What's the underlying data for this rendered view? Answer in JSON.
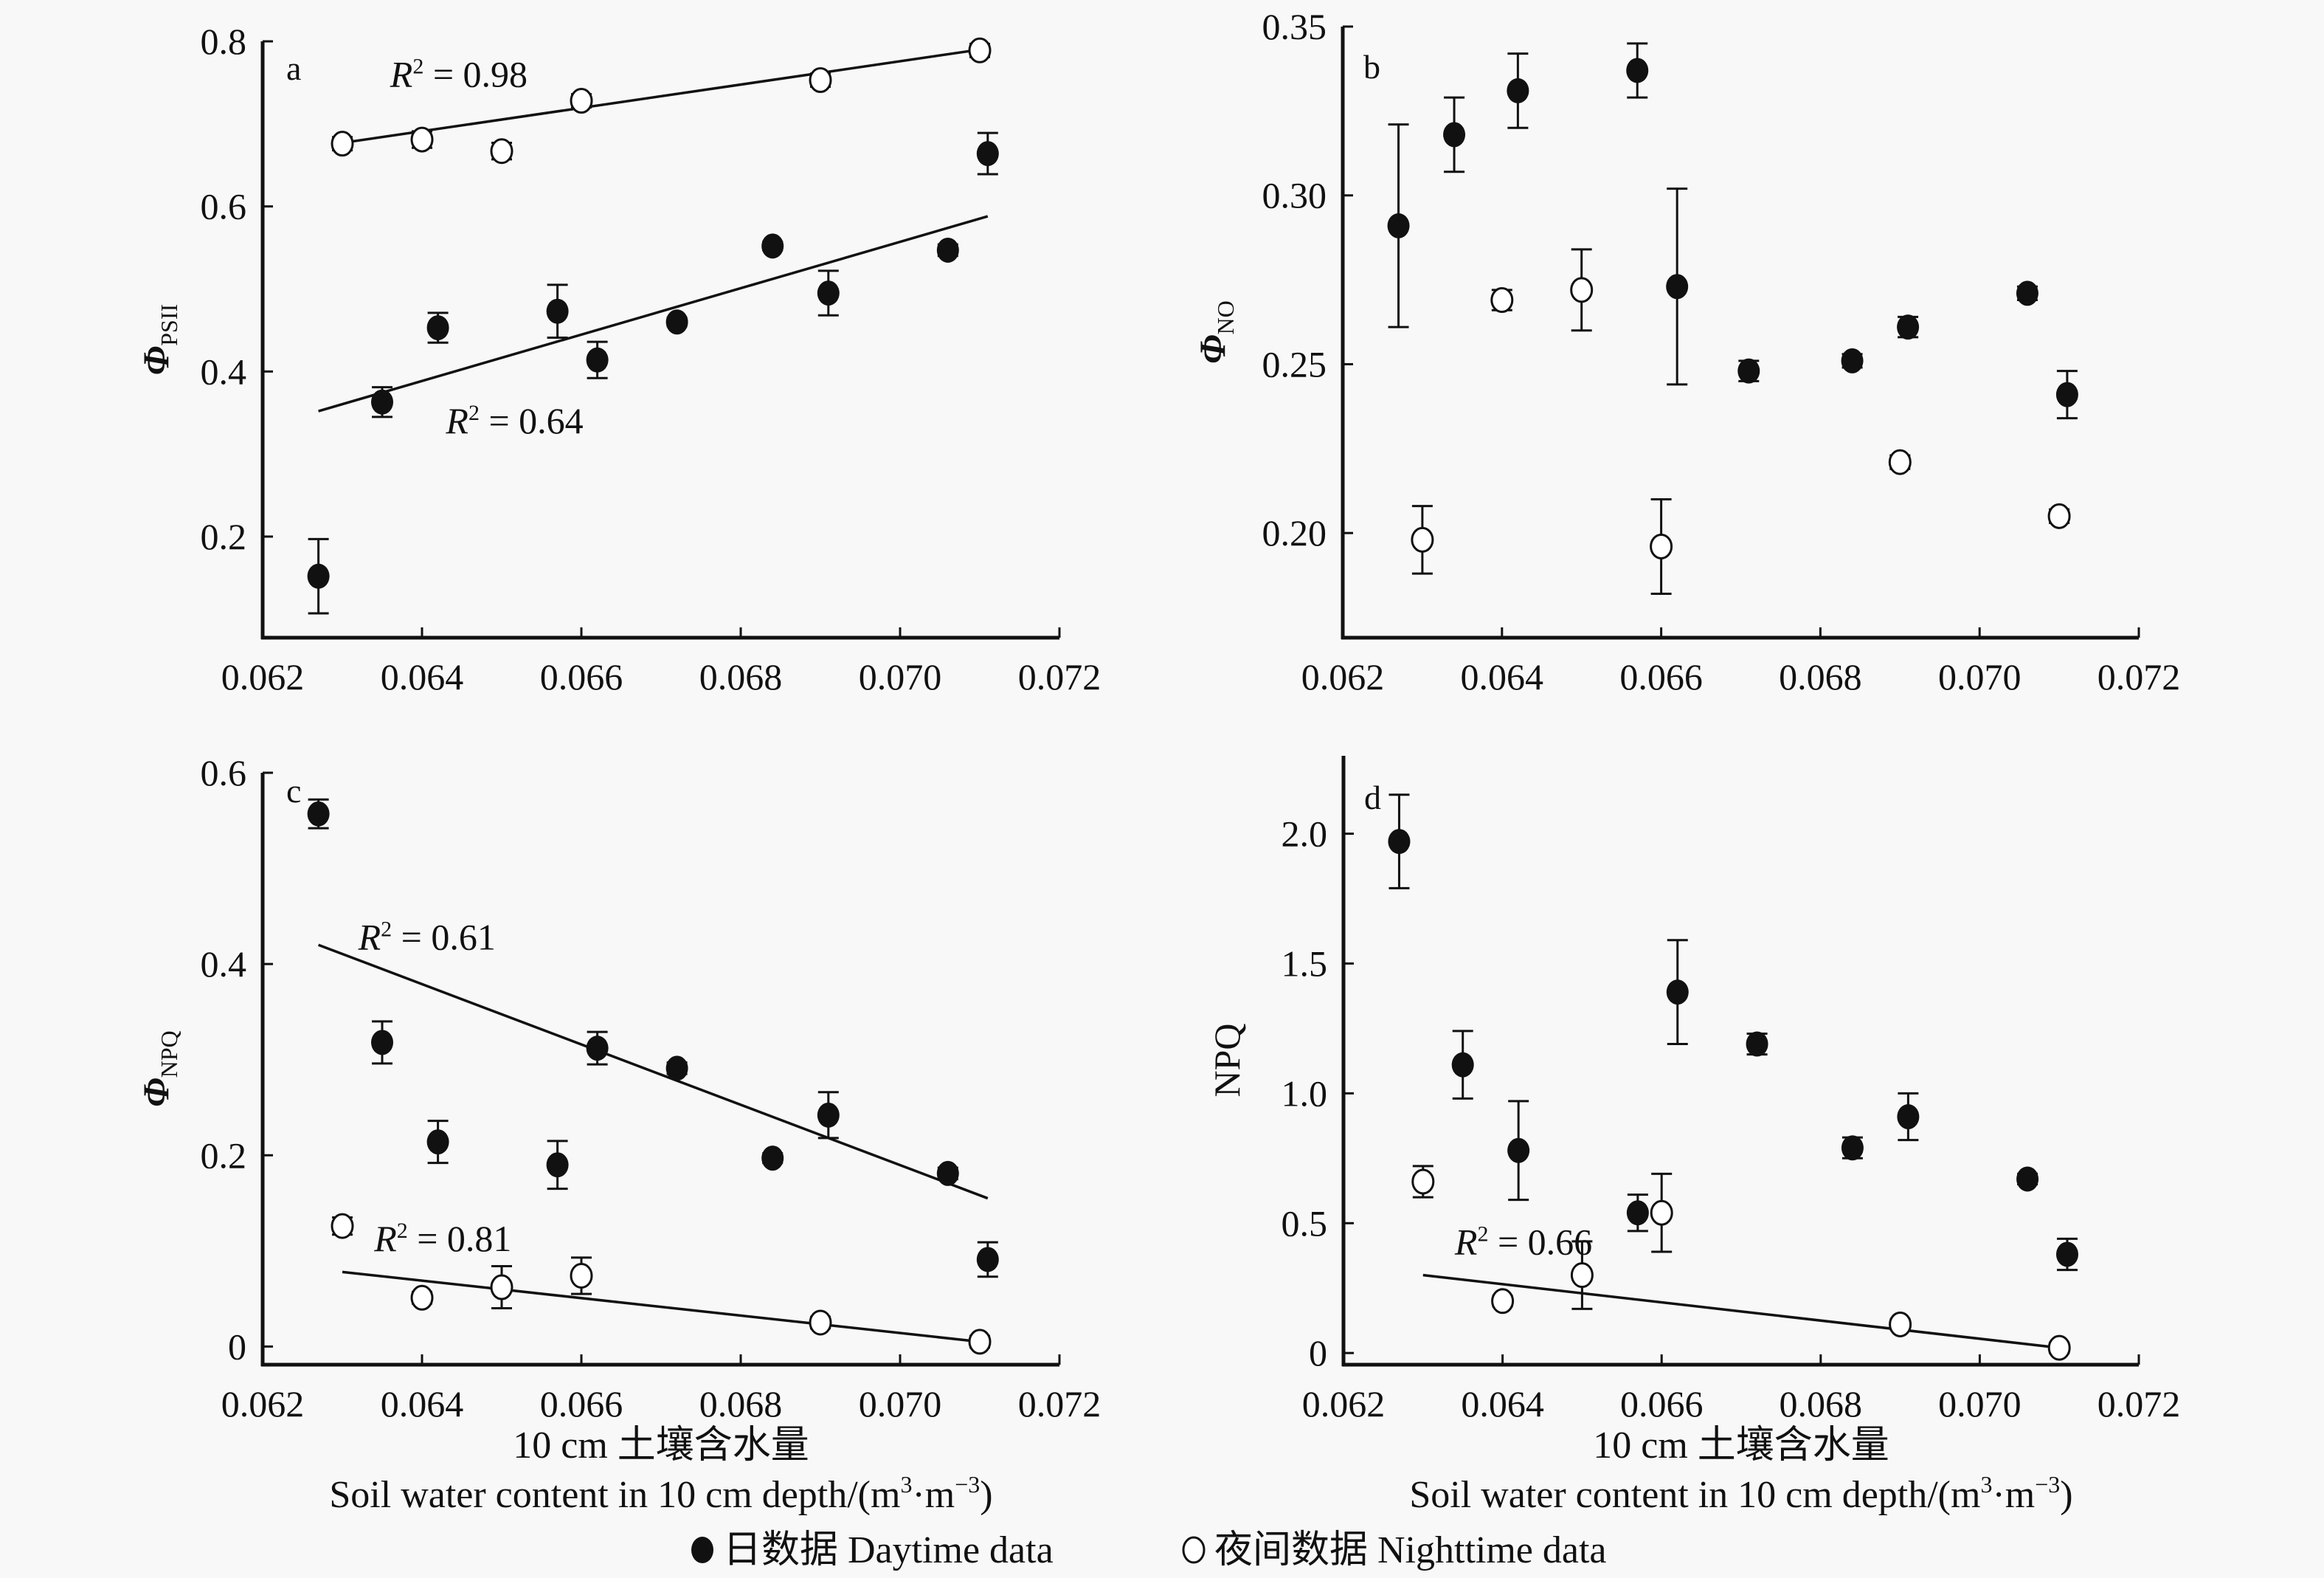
{
  "chart_data": [
    {
      "panel": "a",
      "type": "scatter",
      "ylabel": "Φ",
      "ylabel_sub": "PSII",
      "xlim": [
        0.062,
        0.072
      ],
      "ylim": [
        0.0775,
        0.8
      ],
      "xticks": [
        "0.062",
        "0.064",
        "0.066",
        "0.068",
        "0.070",
        "0.072"
      ],
      "yticks": [
        {
          "v": 0.2,
          "label": "0.2"
        },
        {
          "v": 0.4,
          "label": "0.4"
        },
        {
          "v": 0.6,
          "label": "0.6"
        },
        {
          "v": 0.8,
          "label": "0.8"
        }
      ],
      "series": [
        {
          "name": "Daytime data",
          "marker": "filled",
          "x": [
            0.0627,
            0.0635,
            0.0642,
            0.0657,
            0.0662,
            0.0672,
            0.0684,
            0.0691,
            0.0706,
            0.0711
          ],
          "y": [
            0.152,
            0.363,
            0.453,
            0.473,
            0.414,
            0.46,
            0.552,
            0.495,
            0.547,
            0.664
          ],
          "err": [
            0.045,
            0.018,
            0.018,
            0.032,
            0.022,
            0.005,
            0.005,
            0.027,
            0.007,
            0.025
          ]
        },
        {
          "name": "Nighttime data",
          "marker": "open",
          "x": [
            0.063,
            0.064,
            0.065,
            0.066,
            0.069,
            0.071
          ],
          "y": [
            0.676,
            0.681,
            0.667,
            0.728,
            0.753,
            0.789
          ],
          "err": [
            0.008,
            0.01,
            0.01,
            0.008,
            0.008,
            0.008
          ]
        }
      ],
      "fits": [
        {
          "series": "Nighttime data",
          "x": [
            0.063,
            0.071
          ],
          "y": [
            0.677,
            0.79
          ],
          "label": "R² = 0.98",
          "r2": "0.98",
          "label_at": [
            0.0636,
            0.745
          ]
        },
        {
          "series": "Daytime data",
          "x": [
            0.0627,
            0.0711
          ],
          "y": [
            0.352,
            0.588
          ],
          "label": "R² = 0.64",
          "r2": "0.64",
          "label_at": [
            0.0643,
            0.325
          ]
        }
      ]
    },
    {
      "panel": "b",
      "type": "scatter",
      "ylabel": "Φ",
      "ylabel_sub": "NO",
      "xlim": [
        0.062,
        0.072
      ],
      "ylim": [
        0.169,
        0.35
      ],
      "xticks": [
        "0.062",
        "0.064",
        "0.066",
        "0.068",
        "0.070",
        "0.072"
      ],
      "yticks": [
        {
          "v": 0.2,
          "label": "0.20"
        },
        {
          "v": 0.25,
          "label": "0.25"
        },
        {
          "v": 0.3,
          "label": "0.30"
        },
        {
          "v": 0.35,
          "label": "0.35"
        }
      ],
      "series": [
        {
          "name": "Daytime data",
          "marker": "filled",
          "x": [
            0.0627,
            0.0634,
            0.0642,
            0.0657,
            0.0662,
            0.0671,
            0.0684,
            0.0691,
            0.0706,
            0.0711
          ],
          "y": [
            0.291,
            0.318,
            0.331,
            0.337,
            0.273,
            0.248,
            0.251,
            0.261,
            0.271,
            0.241
          ],
          "err": [
            0.03,
            0.011,
            0.011,
            0.008,
            0.029,
            0.003,
            0.002,
            0.003,
            0.002,
            0.007
          ]
        },
        {
          "name": "Nighttime data",
          "marker": "open",
          "x": [
            0.063,
            0.064,
            0.065,
            0.066,
            0.069,
            0.071
          ],
          "y": [
            0.198,
            0.269,
            0.272,
            0.196,
            0.221,
            0.205
          ],
          "err": [
            0.01,
            0.003,
            0.012,
            0.014,
            0.002,
            0.002
          ]
        }
      ],
      "fits": []
    },
    {
      "panel": "c",
      "type": "scatter",
      "ylabel": "Φ",
      "ylabel_sub": "NPQ",
      "xlim": [
        0.062,
        0.072
      ],
      "ylim": [
        -0.019,
        0.6
      ],
      "xticks": [
        "0.062",
        "0.064",
        "0.066",
        "0.068",
        "0.070",
        "0.072"
      ],
      "yticks": [
        {
          "v": 0,
          "label": "0"
        },
        {
          "v": 0.2,
          "label": "0.2"
        },
        {
          "v": 0.4,
          "label": "0.4"
        },
        {
          "v": 0.6,
          "label": "0.6"
        }
      ],
      "series": [
        {
          "name": "Daytime data",
          "marker": "filled",
          "x": [
            0.0627,
            0.0635,
            0.0642,
            0.0657,
            0.0662,
            0.0672,
            0.0684,
            0.0691,
            0.0706,
            0.0711
          ],
          "y": [
            0.557,
            0.318,
            0.214,
            0.19,
            0.312,
            0.291,
            0.197,
            0.242,
            0.181,
            0.091
          ],
          "err": [
            0.015,
            0.022,
            0.022,
            0.025,
            0.017,
            0.006,
            0.005,
            0.024,
            0.006,
            0.018
          ]
        },
        {
          "name": "Nighttime data",
          "marker": "open",
          "x": [
            0.063,
            0.064,
            0.065,
            0.066,
            0.069,
            0.071
          ],
          "y": [
            0.126,
            0.051,
            0.062,
            0.074,
            0.025,
            0.005
          ],
          "err": [
            0.009,
            0.006,
            0.022,
            0.019,
            0.006,
            0.006
          ]
        }
      ],
      "fits": [
        {
          "series": "Daytime data",
          "x": [
            0.0627,
            0.0711
          ],
          "y": [
            0.42,
            0.155
          ],
          "label": "R² = 0.61",
          "r2": "0.61",
          "label_at": [
            0.0632,
            0.415
          ]
        },
        {
          "series": "Nighttime data",
          "x": [
            0.063,
            0.071
          ],
          "y": [
            0.078,
            0.005
          ],
          "label": "R² = 0.81",
          "r2": "0.81",
          "label_at": [
            0.0634,
            0.1
          ]
        }
      ]
    },
    {
      "panel": "d",
      "type": "scatter",
      "ylabel": "NPQ",
      "ylabel_sub": "",
      "xlim": [
        0.062,
        0.072
      ],
      "ylim": [
        -0.045,
        2.3
      ],
      "xticks": [
        "0.062",
        "0.064",
        "0.066",
        "0.068",
        "0.070",
        "0.072"
      ],
      "yticks": [
        {
          "v": 0,
          "label": "0"
        },
        {
          "v": 0.5,
          "label": "0.5"
        },
        {
          "v": 1.0,
          "label": "1.0"
        },
        {
          "v": 1.5,
          "label": "1.5"
        },
        {
          "v": 2.0,
          "label": "2.0"
        }
      ],
      "series": [
        {
          "name": "Daytime data",
          "marker": "filled",
          "x": [
            0.0627,
            0.0635,
            0.0642,
            0.0657,
            0.0662,
            0.0672,
            0.0684,
            0.0691,
            0.0706,
            0.0711
          ],
          "y": [
            1.97,
            1.11,
            0.78,
            0.54,
            1.39,
            1.19,
            0.79,
            0.91,
            0.67,
            0.38
          ],
          "err": [
            0.18,
            0.13,
            0.19,
            0.07,
            0.2,
            0.04,
            0.04,
            0.09,
            0.02,
            0.06
          ]
        },
        {
          "name": "Nighttime data",
          "marker": "open",
          "x": [
            0.063,
            0.064,
            0.065,
            0.066,
            0.069,
            0.071
          ],
          "y": [
            0.66,
            0.2,
            0.3,
            0.54,
            0.11,
            0.02
          ],
          "err": [
            0.06,
            0.02,
            0.13,
            0.15,
            0.02,
            0.02
          ]
        }
      ],
      "fits": [
        {
          "series": "Nighttime data",
          "x": [
            0.063,
            0.071
          ],
          "y": [
            0.3,
            0.02
          ],
          "label": "R² = 0.66",
          "r2": "0.66",
          "label_at": [
            0.0634,
            0.38
          ]
        }
      ]
    }
  ],
  "xlabel_cn": "10 cm 土壤含水量",
  "xlabel_en": "Soil water content in 10 cm depth/(m³·m⁻³)",
  "xlabel_en_base": "Soil water content in 10 cm depth/(m",
  "xlabel_en_sup1": "3",
  "xlabel_en_mid": "·m",
  "xlabel_en_sup2": "−3",
  "xlabel_en_end": ")",
  "legend": [
    {
      "label": "日数据 Daytime data",
      "marker": "filled"
    },
    {
      "label": "夜间数据 Nighttime data",
      "marker": "open"
    }
  ]
}
